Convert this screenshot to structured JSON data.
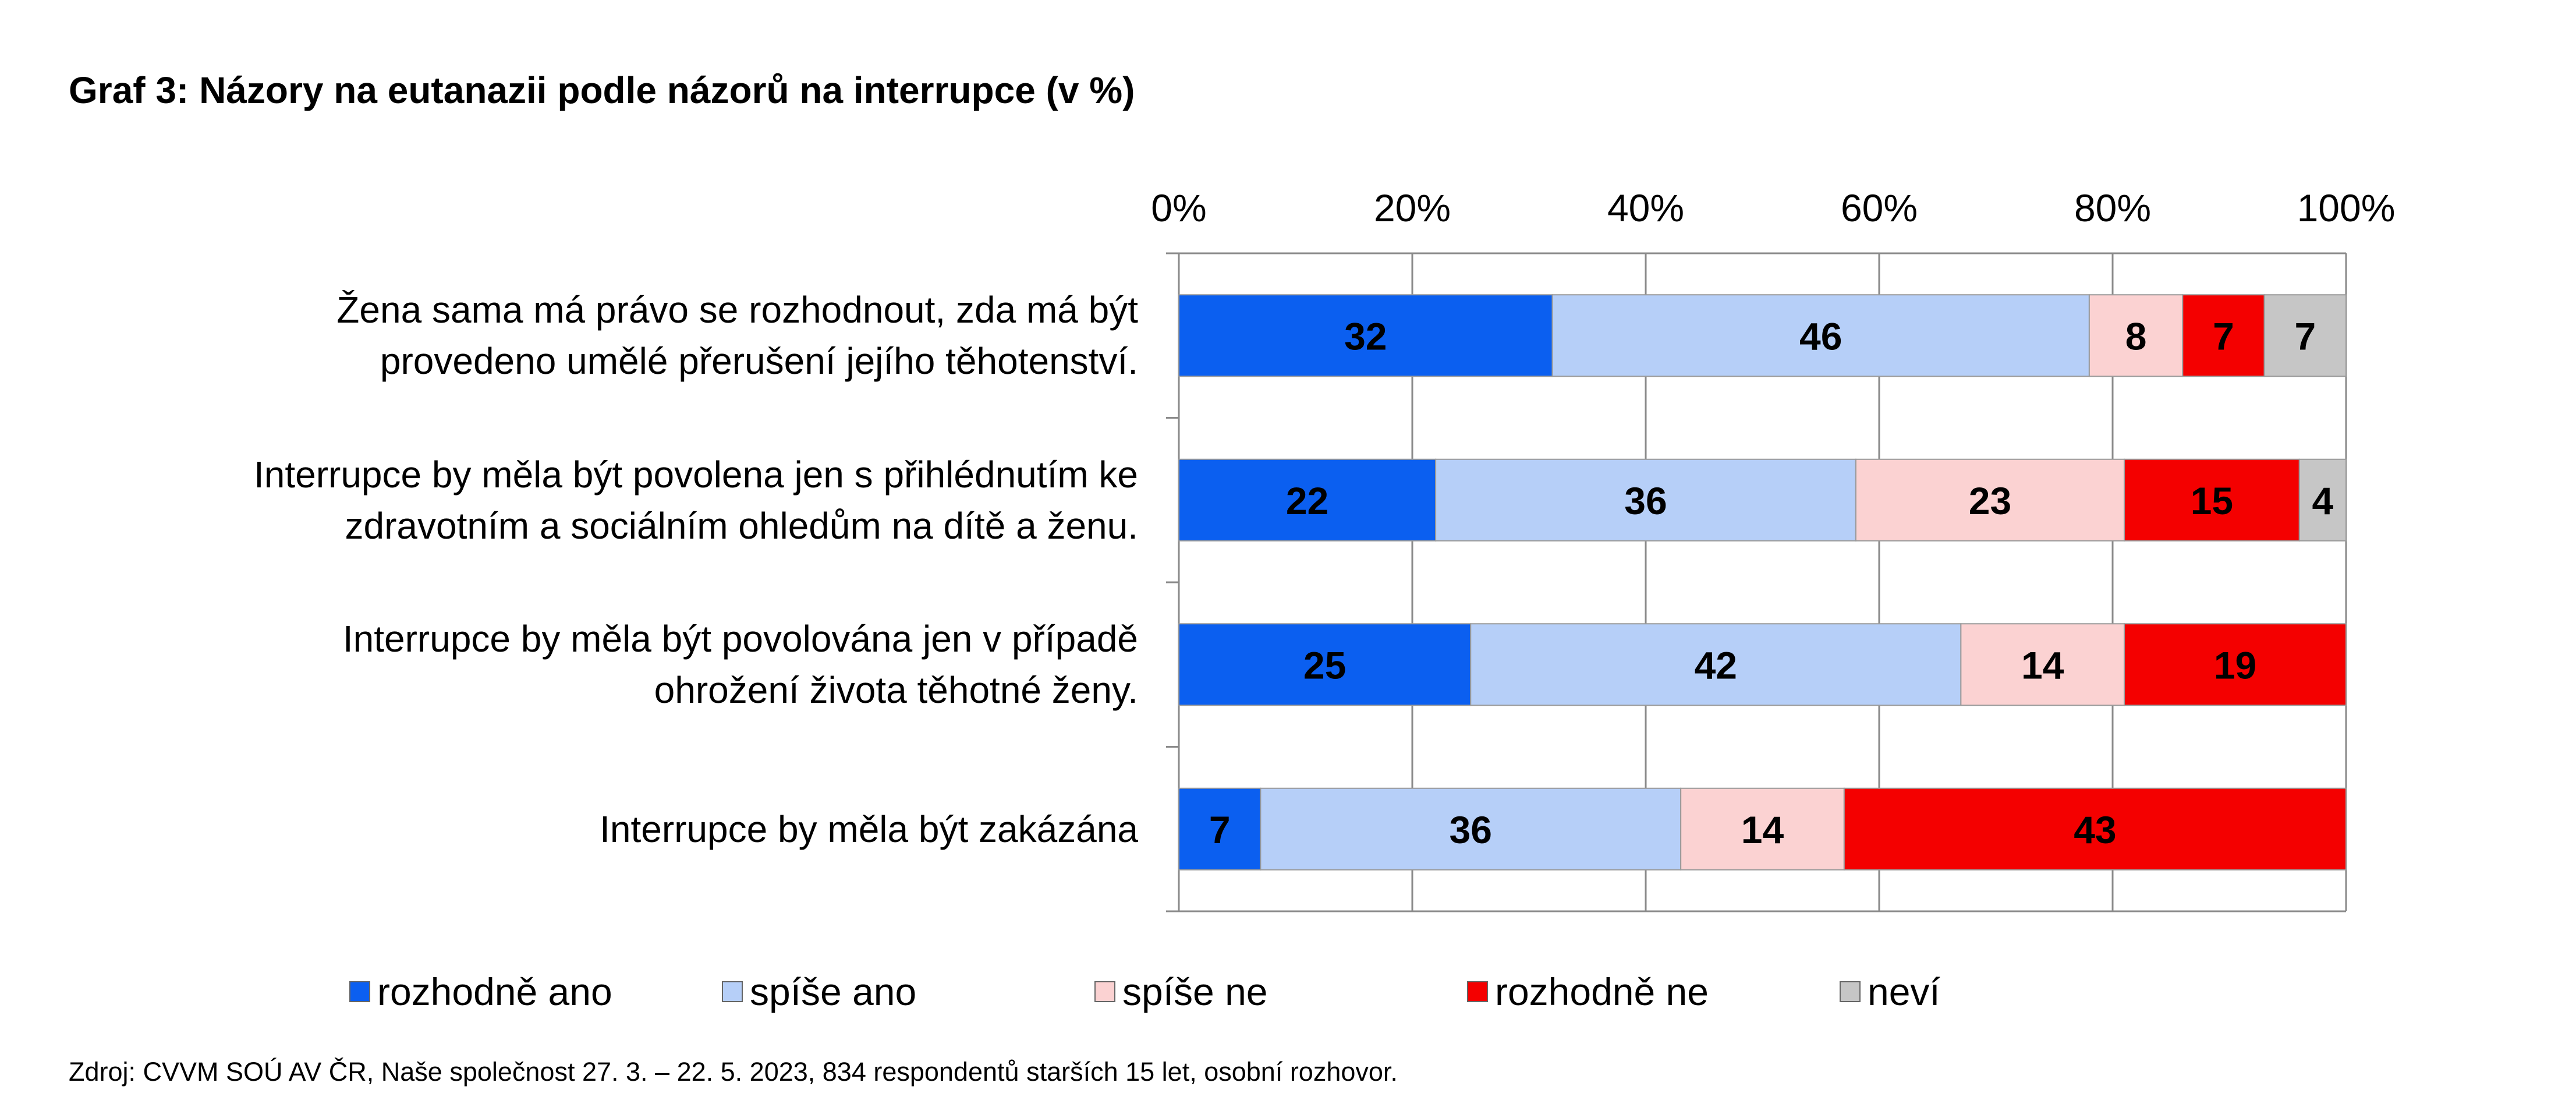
{
  "chart_data": {
    "type": "bar",
    "orientation": "horizontal",
    "stacked": true,
    "title": "Graf 3: Názory na eutanazii podle názorů na interrupce (v %)",
    "xlabel": "",
    "ylabel": "",
    "xlim": [
      0,
      100
    ],
    "x_ticks": [
      "0%",
      "20%",
      "40%",
      "60%",
      "80%",
      "100%"
    ],
    "grid": true,
    "legend_position": "bottom",
    "categories": [
      [
        "Žena sama má právo se rozhodnout, zda má být",
        "provedeno umělé přerušení jejího těhotenství."
      ],
      [
        "Interrupce by měla být povolena jen s přihlédnutím ke",
        "zdravotním a sociálním ohledům na dítě a ženu."
      ],
      [
        "Interrupce by měla být povolována jen v případě",
        "ohrožení života těhotné ženy."
      ],
      [
        "Interrupce by měla být zakázána"
      ]
    ],
    "series": [
      {
        "name": "rozhodně ano",
        "color": "#0b5ff0",
        "values": [
          32,
          22,
          25,
          7
        ]
      },
      {
        "name": "spíše ano",
        "color": "#b6cff8",
        "values": [
          46,
          36,
          42,
          36
        ]
      },
      {
        "name": "spíše ne",
        "color": "#fbd2d2",
        "values": [
          8,
          23,
          14,
          14
        ]
      },
      {
        "name": "rozhodně ne",
        "color": "#f40000",
        "values": [
          7,
          15,
          19,
          43
        ]
      },
      {
        "name": "neví",
        "color": "#c6c6c6",
        "values": [
          7,
          4,
          0,
          0
        ]
      }
    ],
    "source": "Zdroj: CVVM SOÚ AV ČR, Naše společnost 27. 3. – 22. 5. 2023, 834 respondentů starších 15 let, osobní rozhovor."
  }
}
